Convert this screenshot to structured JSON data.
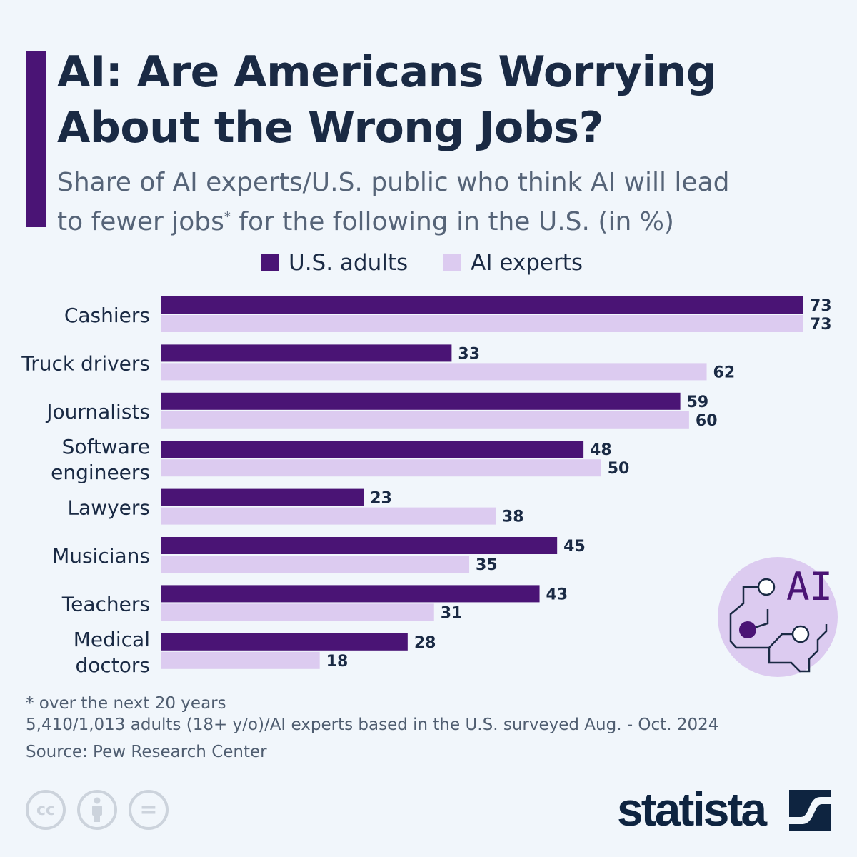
{
  "title_lines": [
    "AI: Are Americans Worrying",
    "About the Wrong Jobs?"
  ],
  "subtitle_line1": "Share of AI experts/U.S. public who think AI will lead",
  "subtitle_line2_a": "to fewer jobs",
  "subtitle_sup": "*",
  "subtitle_line2_b": " for the following in the U.S. (in %)",
  "colors": {
    "us_adults": "#4a1475",
    "ai_experts": "#dccbf0",
    "text": "#1a2a44",
    "background": "#f1f6fb"
  },
  "chart_data": {
    "type": "bar",
    "orientation": "horizontal",
    "categories": [
      "Cashiers",
      "Truck drivers",
      "Journalists",
      "Software engineers",
      "Lawyers",
      "Musicians",
      "Teachers",
      "Medical doctors"
    ],
    "category_lines": [
      [
        "Cashiers"
      ],
      [
        "Truck drivers"
      ],
      [
        "Journalists"
      ],
      [
        "Software",
        "engineers"
      ],
      [
        "Lawyers"
      ],
      [
        "Musicians"
      ],
      [
        "Teachers"
      ],
      [
        "Medical",
        "doctors"
      ]
    ],
    "series": [
      {
        "name": "U.S. adults",
        "values": [
          73,
          33,
          59,
          48,
          23,
          45,
          43,
          28
        ]
      },
      {
        "name": "AI experts",
        "values": [
          73,
          62,
          60,
          50,
          38,
          35,
          31,
          18
        ]
      }
    ],
    "legend_position": "top",
    "grid": false,
    "xlim": [
      0,
      73
    ]
  },
  "notes": [
    "* over the next 20 years",
    "5,410/1,013 adults (18+ y/o)/AI experts based in the U.S. surveyed Aug. - Oct. 2024",
    "Source: Pew Research Center"
  ],
  "icons": {
    "license": [
      "cc-icon",
      "attribution-icon",
      "no-derivatives-icon"
    ],
    "illustration": "ai-brain-circuit-icon"
  },
  "ai_icon_text": "AI",
  "license_cc": "cc",
  "license_eq": "=",
  "logo_text": "statista"
}
